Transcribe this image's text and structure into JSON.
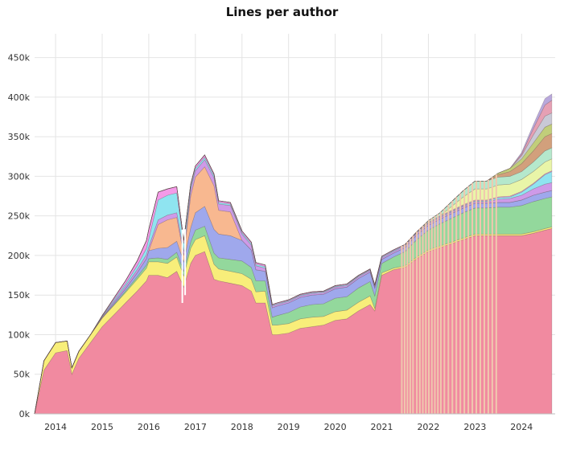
{
  "chart_data": {
    "type": "area",
    "stacked": true,
    "title": "Lines per author",
    "xlabel": "",
    "ylabel": "",
    "x_tick_labels": [
      "2014",
      "2015",
      "2016",
      "2017",
      "2018",
      "2019",
      "2020",
      "2021",
      "2022",
      "2023",
      "2024"
    ],
    "y_tick_labels": [
      "0k",
      "50k",
      "100k",
      "150k",
      "200k",
      "250k",
      "300k",
      "350k",
      "400k",
      "450k"
    ],
    "xlim": [
      2013.55,
      2024.72
    ],
    "ylim": [
      0,
      480000
    ],
    "grid": true,
    "legend": "none",
    "x": [
      2013.55,
      2013.75,
      2014.0,
      2014.25,
      2014.35,
      2014.5,
      2014.75,
      2015.0,
      2015.25,
      2015.5,
      2015.75,
      2015.95,
      2016.0,
      2016.2,
      2016.4,
      2016.6,
      2016.75,
      2016.9,
      2017.0,
      2017.2,
      2017.4,
      2017.5,
      2017.75,
      2018.0,
      2018.2,
      2018.3,
      2018.5,
      2018.65,
      2018.75,
      2019.0,
      2019.25,
      2019.5,
      2019.75,
      2020.0,
      2020.25,
      2020.5,
      2020.75,
      2020.85,
      2021.0,
      2021.25,
      2021.5,
      2021.75,
      2022.0,
      2022.25,
      2022.5,
      2022.75,
      2023.0,
      2023.25,
      2023.5,
      2023.75,
      2024.0,
      2024.25,
      2024.5,
      2024.65
    ],
    "series": [
      {
        "color": "#f18aa0",
        "values": [
          0,
          55000,
          77000,
          80000,
          50000,
          70000,
          90000,
          110000,
          125000,
          140000,
          155000,
          168000,
          175000,
          175000,
          172000,
          180000,
          160000,
          190000,
          200000,
          205000,
          170000,
          168000,
          165000,
          162000,
          155000,
          140000,
          140000,
          100000,
          100000,
          102000,
          108000,
          110000,
          112000,
          118000,
          120000,
          130000,
          138000,
          130000,
          175000,
          182000,
          185000,
          196000,
          205000,
          210000,
          215000,
          220000,
          225000,
          225000,
          225000,
          225000,
          225000,
          228000,
          232000,
          234000
        ]
      },
      {
        "color": "#f8ee7a",
        "values": [
          0,
          12000,
          13000,
          12000,
          8000,
          9000,
          10000,
          11000,
          12000,
          13000,
          15000,
          16000,
          17000,
          17000,
          18000,
          18000,
          14000,
          19000,
          20000,
          20000,
          19000,
          15000,
          15000,
          15000,
          15000,
          14000,
          15000,
          12000,
          12000,
          12000,
          12000,
          12000,
          11000,
          11000,
          11000,
          11000,
          11000,
          3000,
          3000,
          2000,
          2000,
          2000,
          2000,
          2000,
          2000,
          2000,
          2000,
          2000,
          2000,
          2000,
          2000,
          2000,
          2000,
          2000
        ]
      },
      {
        "color": "#93d89c",
        "values": [
          0,
          0,
          0,
          0,
          0,
          0,
          0,
          0,
          1000,
          2000,
          3000,
          4000,
          4000,
          5000,
          5000,
          6000,
          6000,
          8000,
          12000,
          12000,
          14000,
          14000,
          15000,
          16000,
          15000,
          14000,
          13000,
          10000,
          12000,
          14000,
          15000,
          16000,
          16000,
          17000,
          17000,
          18000,
          18000,
          16000,
          12000,
          14000,
          18000,
          22000,
          25000,
          28000,
          30000,
          32000,
          33000,
          33000,
          34000,
          34000,
          36000,
          38000,
          38000,
          38000
        ]
      },
      {
        "color": "#9fa8ec",
        "values": [
          0,
          0,
          0,
          0,
          0,
          0,
          0,
          0,
          2000,
          3000,
          5000,
          8000,
          10000,
          12000,
          15000,
          14000,
          12000,
          18000,
          22000,
          25000,
          30000,
          30000,
          30000,
          26000,
          22000,
          14000,
          12000,
          12000,
          12000,
          12000,
          12000,
          12000,
          12000,
          12000,
          12000,
          12000,
          12000,
          10000,
          5000,
          5000,
          5000,
          6000,
          6000,
          6000,
          6000,
          6000,
          6000,
          6000,
          6000,
          6000,
          7000,
          8000,
          8000,
          8000
        ]
      },
      {
        "color": "#f8b890",
        "values": [
          0,
          0,
          0,
          0,
          0,
          0,
          0,
          0,
          0,
          0,
          0,
          0,
          0,
          30000,
          35000,
          30000,
          8000,
          40000,
          45000,
          50000,
          55000,
          30000,
          30000,
          0,
          0,
          0,
          0,
          0,
          0,
          0,
          0,
          0,
          0,
          0,
          0,
          0,
          0,
          0,
          0,
          0,
          0,
          0,
          0,
          0,
          0,
          0,
          0,
          0,
          0,
          0,
          0,
          0,
          0,
          0
        ]
      },
      {
        "color": "#ce9ae8",
        "values": [
          0,
          0,
          0,
          0,
          0,
          0,
          0,
          1000,
          2000,
          3000,
          4000,
          5000,
          5000,
          6000,
          6000,
          6000,
          5000,
          8000,
          8000,
          9000,
          10000,
          8000,
          8000,
          8000,
          6000,
          5000,
          4000,
          2000,
          2000,
          2000,
          2000,
          2000,
          2000,
          2000,
          2000,
          2000,
          2000,
          2000,
          2000,
          2000,
          2000,
          2000,
          2000,
          2000,
          2000,
          2000,
          2000,
          2000,
          4000,
          5000,
          6000,
          8000,
          10000,
          10000
        ]
      },
      {
        "color": "#8fe4f0",
        "values": [
          0,
          0,
          0,
          0,
          0,
          0,
          0,
          1000,
          2000,
          3000,
          5000,
          8000,
          10000,
          25000,
          25000,
          25000,
          10000,
          4000,
          3000,
          3000,
          3000,
          2000,
          2000,
          2000,
          2000,
          2000,
          2000,
          1000,
          1000,
          1000,
          1000,
          1000,
          1000,
          1000,
          1000,
          1000,
          1000,
          1000,
          1000,
          1000,
          1000,
          1000,
          1000,
          1000,
          1000,
          1000,
          1000,
          1000,
          2000,
          2000,
          4000,
          6000,
          12000,
          14000
        ]
      },
      {
        "color": "#f49ae8",
        "values": [
          0,
          0,
          0,
          0,
          0,
          0,
          0,
          1000,
          2000,
          4000,
          6000,
          10000,
          12000,
          10000,
          8000,
          8000,
          4000,
          3000,
          3000,
          3000,
          2000,
          2000,
          2000,
          2000,
          2000,
          2000,
          2000,
          1000,
          1000,
          1000,
          1000,
          1000,
          1000,
          1000,
          1000,
          1000,
          1000,
          1000,
          1000,
          1000,
          1000,
          1000,
          1000,
          1000,
          1000,
          1000,
          1000,
          1000,
          1000,
          1000,
          1000,
          1000,
          1000,
          1000
        ]
      },
      {
        "color": "#e9f5a8",
        "values": [
          0,
          0,
          0,
          0,
          0,
          0,
          0,
          0,
          0,
          0,
          0,
          0,
          0,
          0,
          0,
          0,
          0,
          0,
          0,
          0,
          0,
          0,
          0,
          0,
          0,
          0,
          0,
          0,
          0,
          0,
          0,
          0,
          0,
          0,
          0,
          0,
          0,
          0,
          0,
          0,
          0,
          0,
          0,
          0,
          5000,
          10000,
          14000,
          14000,
          15000,
          15000,
          15000,
          15000,
          15000,
          15000
        ]
      },
      {
        "color": "#b5e8cc",
        "values": [
          0,
          0,
          0,
          0,
          0,
          0,
          0,
          0,
          0,
          0,
          0,
          0,
          0,
          0,
          0,
          0,
          0,
          0,
          0,
          0,
          0,
          0,
          0,
          0,
          0,
          0,
          0,
          0,
          0,
          0,
          0,
          0,
          0,
          0,
          0,
          0,
          0,
          0,
          0,
          0,
          0,
          0,
          2000,
          4000,
          6000,
          8000,
          10000,
          10000,
          10000,
          10000,
          10000,
          12000,
          14000,
          14000
        ]
      },
      {
        "color": "#d2a07c",
        "values": [
          0,
          0,
          0,
          0,
          0,
          0,
          0,
          0,
          0,
          0,
          0,
          0,
          0,
          0,
          0,
          0,
          0,
          0,
          0,
          0,
          0,
          0,
          0,
          0,
          0,
          0,
          0,
          0,
          0,
          0,
          0,
          0,
          0,
          0,
          0,
          0,
          0,
          0,
          0,
          0,
          0,
          0,
          0,
          0,
          0,
          0,
          0,
          0,
          3000,
          6000,
          10000,
          14000,
          18000,
          18000
        ]
      },
      {
        "color": "#c1ce7a",
        "values": [
          0,
          0,
          0,
          0,
          0,
          0,
          0,
          0,
          0,
          0,
          0,
          0,
          0,
          0,
          0,
          0,
          0,
          0,
          0,
          0,
          0,
          0,
          0,
          0,
          0,
          0,
          0,
          0,
          0,
          0,
          0,
          0,
          0,
          0,
          0,
          0,
          0,
          0,
          0,
          0,
          0,
          0,
          0,
          0,
          0,
          0,
          0,
          0,
          2000,
          4000,
          6000,
          10000,
          12000,
          12000
        ]
      },
      {
        "color": "#c9c9d6",
        "values": [
          0,
          0,
          0,
          0,
          0,
          0,
          0,
          0,
          0,
          0,
          0,
          0,
          0,
          0,
          0,
          0,
          0,
          0,
          0,
          0,
          0,
          0,
          0,
          0,
          0,
          0,
          0,
          0,
          0,
          0,
          0,
          0,
          0,
          0,
          0,
          0,
          0,
          0,
          0,
          0,
          0,
          0,
          0,
          0,
          0,
          0,
          0,
          0,
          0,
          0,
          4000,
          10000,
          14000,
          14000
        ]
      },
      {
        "color": "#e6a0b4",
        "values": [
          0,
          0,
          0,
          0,
          0,
          0,
          0,
          0,
          0,
          0,
          0,
          0,
          0,
          0,
          0,
          0,
          0,
          0,
          0,
          0,
          0,
          0,
          0,
          0,
          0,
          0,
          0,
          0,
          0,
          0,
          0,
          0,
          0,
          0,
          0,
          0,
          0,
          0,
          0,
          0,
          0,
          0,
          0,
          0,
          0,
          0,
          0,
          0,
          0,
          0,
          2000,
          8000,
          14000,
          16000
        ]
      },
      {
        "color": "#b8a8dc",
        "values": [
          0,
          0,
          0,
          0,
          0,
          0,
          0,
          0,
          0,
          0,
          0,
          0,
          0,
          0,
          0,
          0,
          0,
          0,
          0,
          0,
          0,
          0,
          0,
          0,
          0,
          0,
          0,
          0,
          0,
          0,
          0,
          0,
          0,
          0,
          0,
          0,
          0,
          0,
          0,
          0,
          0,
          0,
          0,
          0,
          0,
          0,
          0,
          0,
          0,
          0,
          2000,
          5000,
          8000,
          8000
        ]
      }
    ],
    "drops": [
      {
        "x": 2016.72,
        "y": 140000
      },
      {
        "x": 2016.78,
        "y": 150000
      }
    ],
    "spike_lines": {
      "color": "#f0c8ae",
      "x_ranges": [
        [
          2021.4,
          2021.7,
          5
        ],
        [
          2021.72,
          2022.3,
          9
        ],
        [
          2022.3,
          2023.5,
          14
        ]
      ],
      "stride": 2
    }
  }
}
